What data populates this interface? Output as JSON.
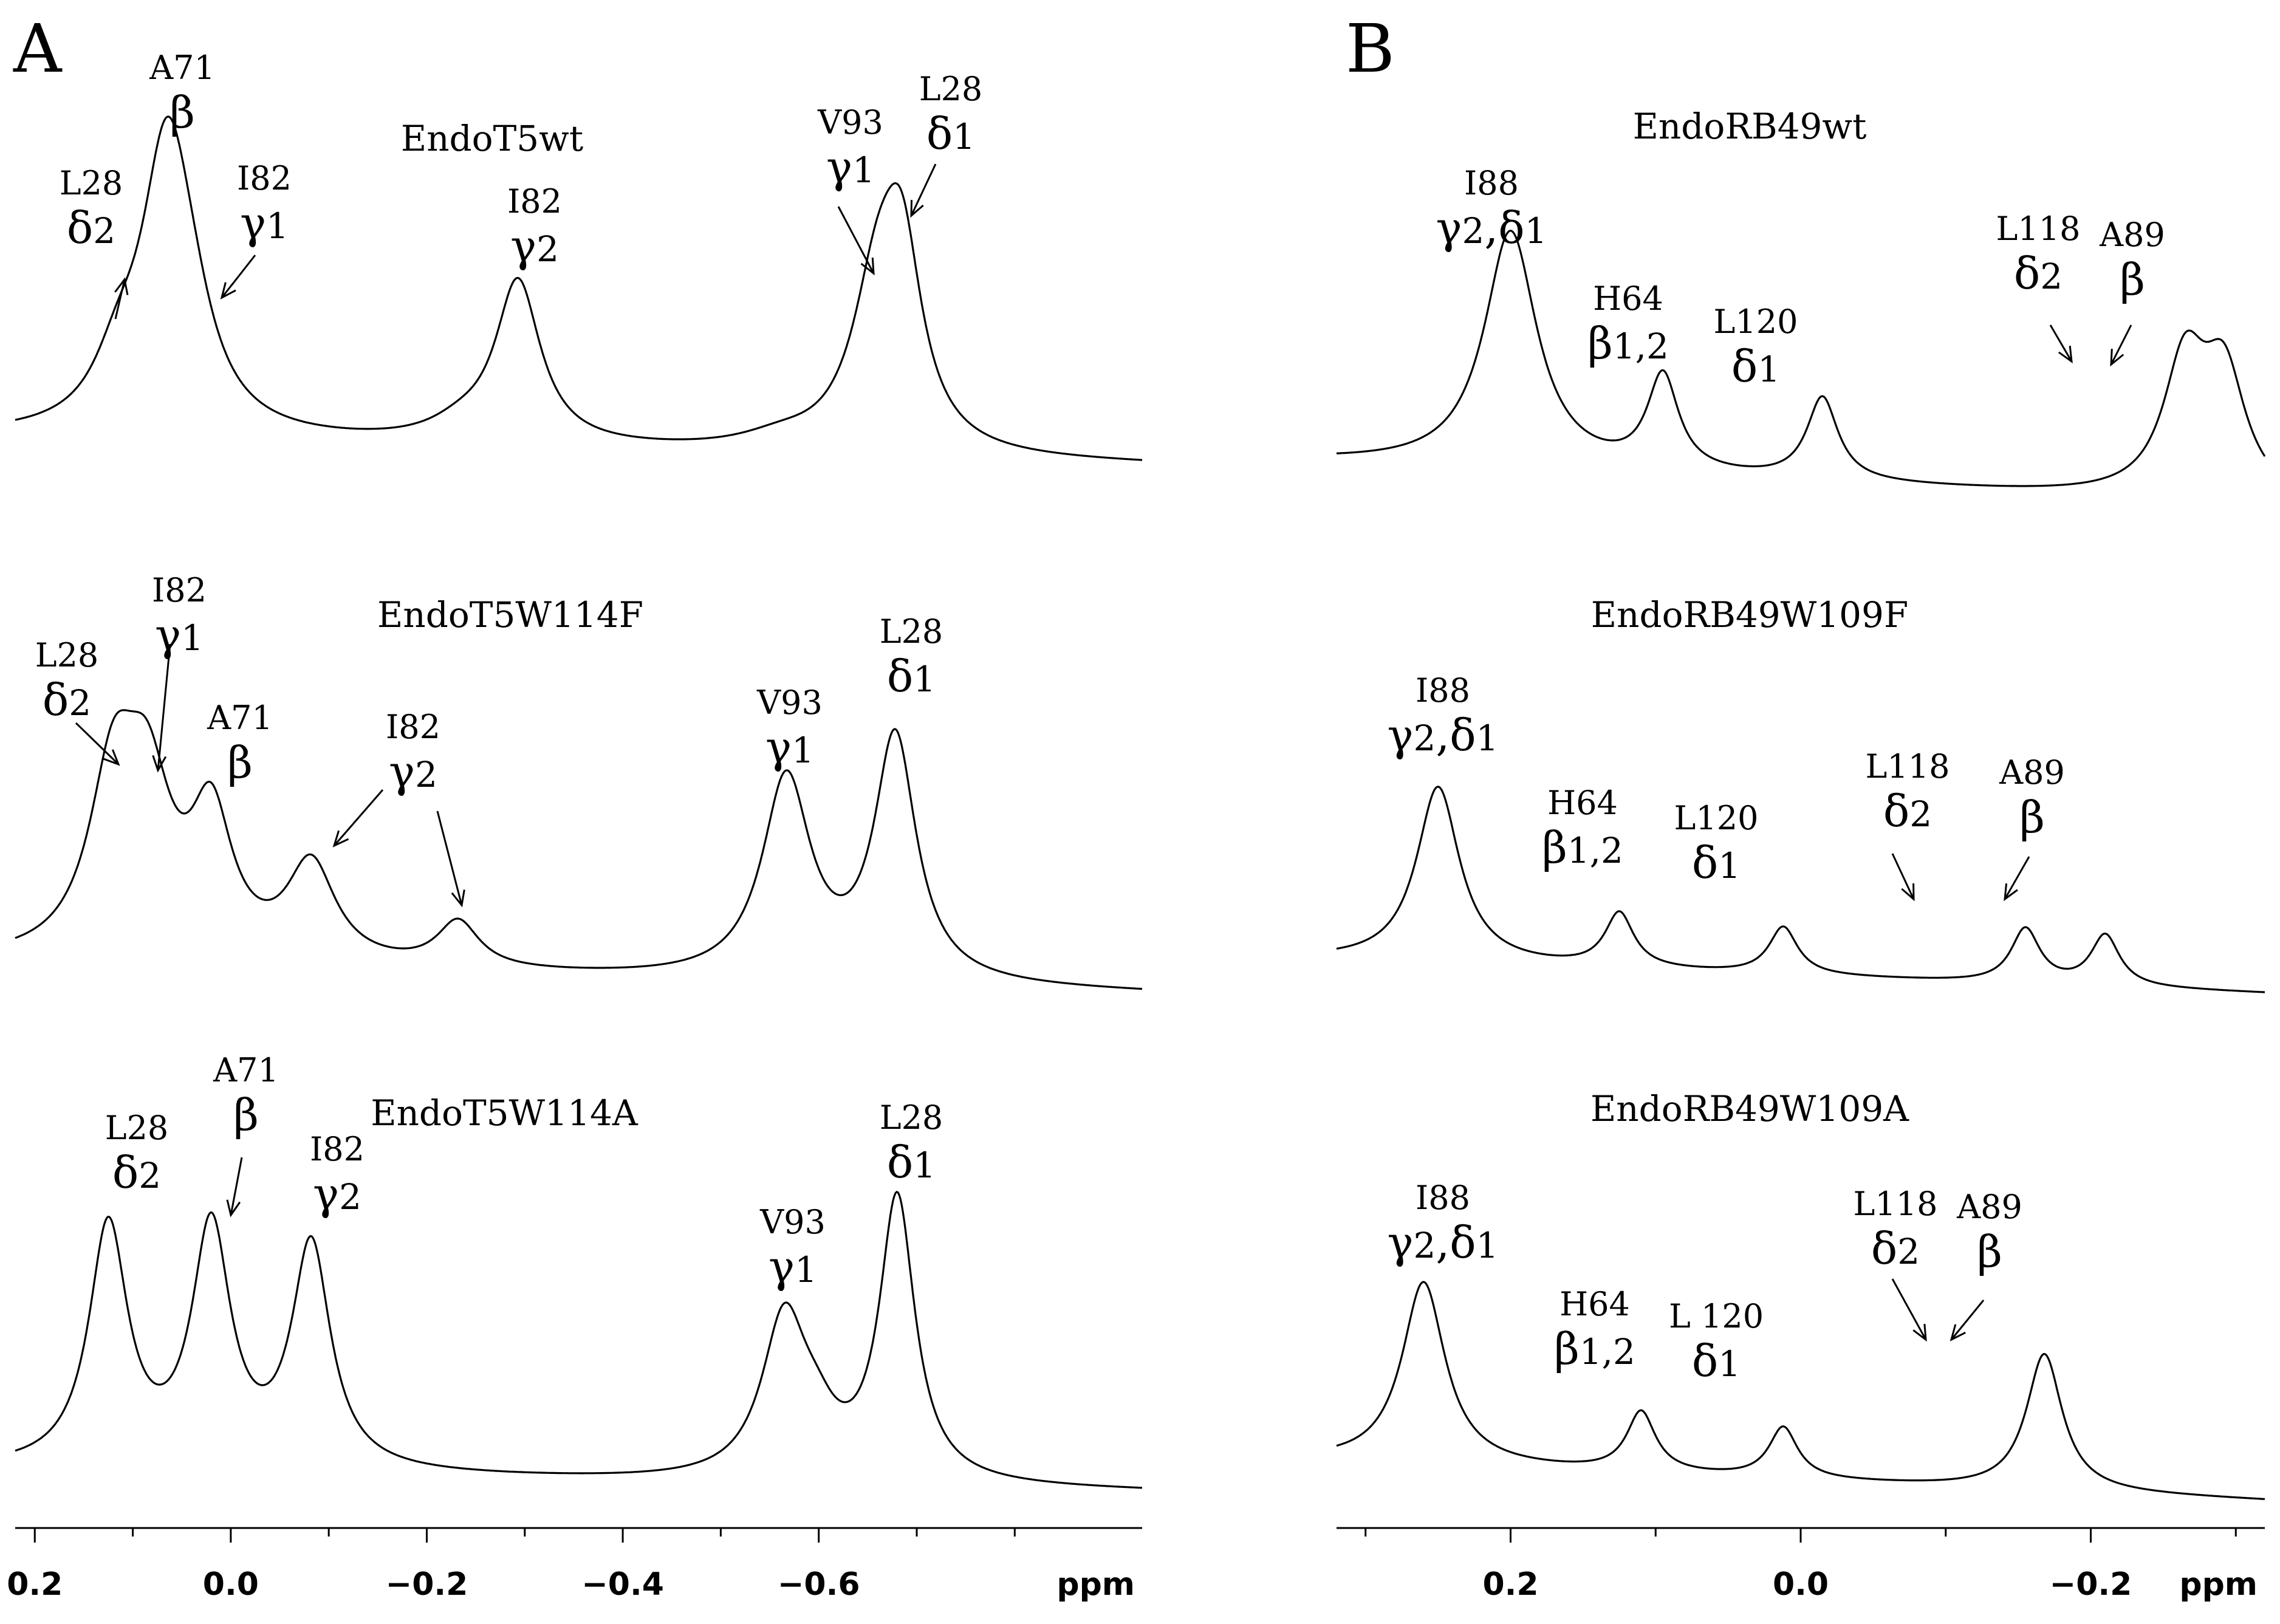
{
  "chart_data": [
    {
      "type": "line",
      "panel": "A",
      "xlabel": "ppm",
      "xlim": [
        0.22,
        -0.93
      ],
      "x_ticks": [
        0.2,
        0.0,
        -0.2,
        -0.4,
        -0.6
      ],
      "x_tick_labels": [
        "0.2",
        "0.0",
        "−0.2",
        "−0.4",
        "−0.6"
      ],
      "x_minor_ticks": [
        0.1,
        -0.1,
        -0.3,
        -0.5,
        -0.7,
        -0.8
      ],
      "spectra": [
        {
          "name": "EndoT5wt",
          "baseline": [
            0.22,
            -0.93
          ],
          "peaks": [
            {
              "ppm": 0.065,
              "height": 1.0,
              "width": 0.032
            },
            {
              "ppm": 0.115,
              "height": 0.18,
              "width": 0.03
            },
            {
              "ppm": 0.04,
              "height": 0.18,
              "width": 0.03
            },
            {
              "ppm": -0.293,
              "height": 0.58,
              "width": 0.028
            },
            {
              "ppm": -0.235,
              "height": 0.05,
              "width": 0.04
            },
            {
              "ppm": -0.66,
              "height": 0.55,
              "width": 0.032
            },
            {
              "ppm": -0.685,
              "height": 0.6,
              "width": 0.025
            },
            {
              "ppm": -0.56,
              "height": 0.04,
              "width": 0.05
            }
          ],
          "labels": [
            {
              "residue": "L28",
              "atom": "δ",
              "sub": "2"
            },
            {
              "residue": "A71",
              "atom": "β",
              "sub": ""
            },
            {
              "residue": "I82",
              "atom": "γ",
              "sub": "1"
            },
            {
              "residue": "I82",
              "atom": "γ",
              "sub": "2"
            },
            {
              "residue": "V93",
              "atom": "γ",
              "sub": "1"
            },
            {
              "residue": "L28",
              "atom": "δ",
              "sub": "1"
            }
          ]
        },
        {
          "name": "EndoT5W114F",
          "peaks": [
            {
              "ppm": 0.12,
              "height": 0.7,
              "width": 0.03
            },
            {
              "ppm": 0.085,
              "height": 0.62,
              "width": 0.03
            },
            {
              "ppm": 0.02,
              "height": 0.56,
              "width": 0.026
            },
            {
              "ppm": -0.082,
              "height": 0.4,
              "width": 0.03
            },
            {
              "ppm": -0.232,
              "height": 0.19,
              "width": 0.026
            },
            {
              "ppm": -0.567,
              "height": 0.82,
              "width": 0.03
            },
            {
              "ppm": -0.678,
              "height": 1.0,
              "width": 0.026
            }
          ],
          "labels": [
            {
              "residue": "L28",
              "atom": "δ",
              "sub": "2"
            },
            {
              "residue": "I82",
              "atom": "γ",
              "sub": "1"
            },
            {
              "residue": "A71",
              "atom": "β",
              "sub": ""
            },
            {
              "residue": "I82",
              "atom": "γ",
              "sub": "2"
            },
            {
              "residue": "V93",
              "atom": "γ",
              "sub": "1"
            },
            {
              "residue": "L28",
              "atom": "δ",
              "sub": "1"
            }
          ]
        },
        {
          "name": "EndoT5W114A",
          "peaks": [
            {
              "ppm": 0.125,
              "height": 0.85,
              "width": 0.024
            },
            {
              "ppm": 0.02,
              "height": 0.84,
              "width": 0.024
            },
            {
              "ppm": -0.082,
              "height": 0.79,
              "width": 0.024
            },
            {
              "ppm": -0.565,
              "height": 0.56,
              "width": 0.028
            },
            {
              "ppm": -0.598,
              "height": 0.12,
              "width": 0.025
            },
            {
              "ppm": -0.68,
              "height": 1.0,
              "width": 0.022
            }
          ],
          "labels": [
            {
              "residue": "L28",
              "atom": "δ",
              "sub": "2"
            },
            {
              "residue": "A71",
              "atom": "β",
              "sub": ""
            },
            {
              "residue": "I82",
              "atom": "γ",
              "sub": "2"
            },
            {
              "residue": "V93",
              "atom": "γ",
              "sub": "1"
            },
            {
              "residue": "L28",
              "atom": "δ",
              "sub": "1"
            }
          ]
        }
      ]
    },
    {
      "type": "line",
      "panel": "B",
      "xlabel": "ppm",
      "xlim": [
        0.32,
        -0.32
      ],
      "x_ticks": [
        0.2,
        0.0,
        -0.2
      ],
      "x_tick_labels": [
        "0.2",
        "0.0",
        "−0.2"
      ],
      "x_minor_ticks": [
        0.3,
        0.1,
        -0.1,
        -0.3
      ],
      "spectra": [
        {
          "name": "EndoRB49wt",
          "peaks": [
            {
              "ppm": 0.2,
              "height": 1.0,
              "width": 0.022
            },
            {
              "ppm": 0.095,
              "height": 0.4,
              "width": 0.013
            },
            {
              "ppm": -0.015,
              "height": 0.35,
              "width": 0.013
            },
            {
              "ppm": -0.265,
              "height": 0.55,
              "width": 0.018
            },
            {
              "ppm": -0.292,
              "height": 0.5,
              "width": 0.018
            }
          ],
          "labels": [
            {
              "residue": "I88",
              "atom": "γ",
              "sub": "2",
              "atom2": "δ",
              "sub2": "1"
            },
            {
              "residue": "H64",
              "atom": "β",
              "sub": "1,2"
            },
            {
              "residue": "L120",
              "atom": "δ",
              "sub": "1"
            },
            {
              "residue": "L118",
              "atom": "δ",
              "sub": "2"
            },
            {
              "residue": "A89",
              "atom": "β",
              "sub": ""
            }
          ]
        },
        {
          "name": "EndoRB49W109F",
          "peaks": [
            {
              "ppm": 0.25,
              "height": 1.0,
              "width": 0.018
            },
            {
              "ppm": 0.125,
              "height": 0.31,
              "width": 0.012
            },
            {
              "ppm": 0.012,
              "height": 0.27,
              "width": 0.012
            },
            {
              "ppm": -0.155,
              "height": 0.31,
              "width": 0.012
            },
            {
              "ppm": -0.21,
              "height": 0.29,
              "width": 0.012
            }
          ],
          "labels": [
            {
              "residue": "I88",
              "atom": "γ",
              "sub": "2",
              "atom2": "δ",
              "sub2": "1"
            },
            {
              "residue": "H64",
              "atom": "β",
              "sub": "1,2"
            },
            {
              "residue": "L120",
              "atom": "δ",
              "sub": "1"
            },
            {
              "residue": "L118",
              "atom": "δ",
              "sub": "2"
            },
            {
              "residue": "A89",
              "atom": "β",
              "sub": ""
            }
          ]
        },
        {
          "name": "EndoRB49W109A",
          "peaks": [
            {
              "ppm": 0.26,
              "height": 1.0,
              "width": 0.018
            },
            {
              "ppm": 0.11,
              "height": 0.33,
              "width": 0.012
            },
            {
              "ppm": 0.012,
              "height": 0.28,
              "width": 0.012
            },
            {
              "ppm": -0.168,
              "height": 0.75,
              "width": 0.015
            }
          ],
          "labels": [
            {
              "residue": "I88",
              "atom": "γ",
              "sub": "2",
              "atom2": "δ",
              "sub2": "1"
            },
            {
              "residue": "H64",
              "atom": "β",
              "sub": "1,2"
            },
            {
              "residue": "L 120",
              "atom": "δ",
              "sub": "1"
            },
            {
              "residue": "L118",
              "atom": "δ",
              "sub": "2"
            },
            {
              "residue": "A89",
              "atom": "β",
              "sub": ""
            }
          ]
        }
      ]
    }
  ],
  "panel_letters": [
    "A",
    "B"
  ]
}
